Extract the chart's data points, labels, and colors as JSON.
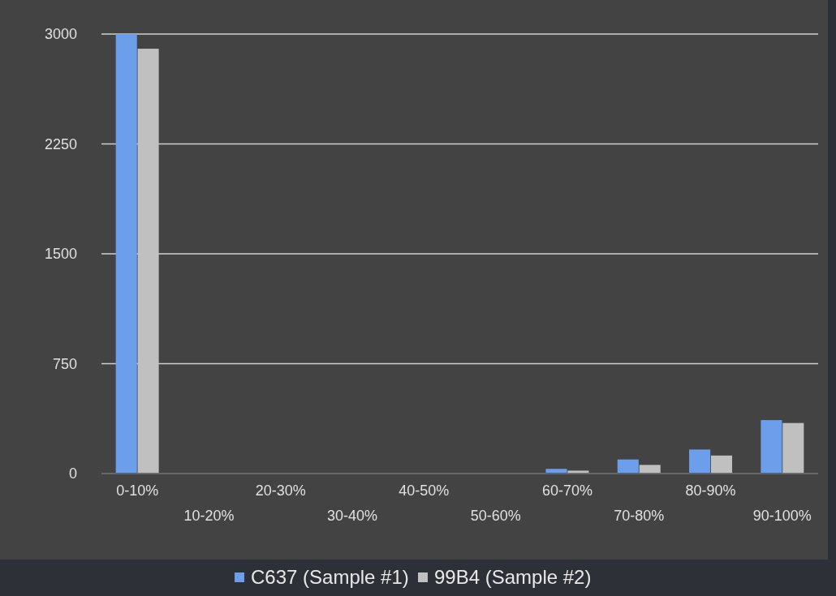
{
  "chart_data": {
    "type": "bar",
    "categories": [
      "0-10%",
      "10-20%",
      "20-30%",
      "30-40%",
      "40-50%",
      "50-60%",
      "60-70%",
      "70-80%",
      "80-90%",
      "90-100%"
    ],
    "series": [
      {
        "name": "C637 (Sample #1)",
        "color": "#6d9eeb",
        "values": [
          3000,
          0,
          0,
          0,
          0,
          0,
          32,
          96,
          164,
          365
        ]
      },
      {
        "name": "99B4 (Sample #2)",
        "color": "#c0c0c0",
        "values": [
          2900,
          0,
          0,
          0,
          0,
          0,
          20,
          59,
          123,
          345
        ]
      }
    ],
    "ylim": [
      0,
      3000
    ],
    "yticks": [
      0,
      750,
      1500,
      2250,
      3000
    ],
    "grid": "y",
    "legend": "bottom"
  }
}
